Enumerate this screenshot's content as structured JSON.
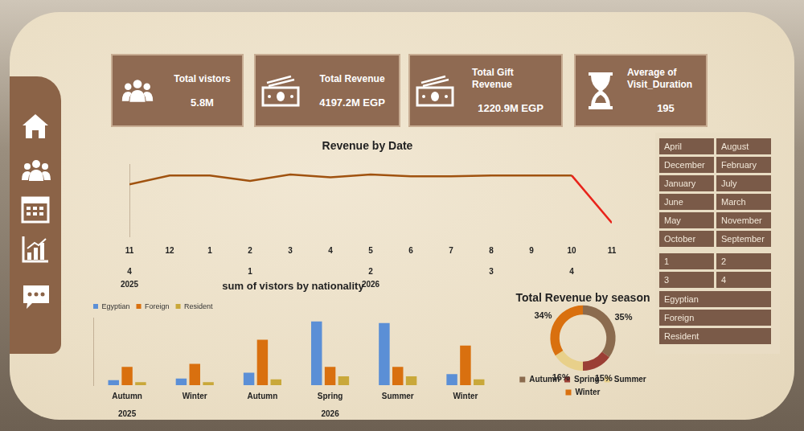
{
  "cards": [
    {
      "title": "Total vistors",
      "value": "5.8M"
    },
    {
      "title": "Total Revenue",
      "value": "4197.2M EGP"
    },
    {
      "title": "Total Gift Revenue",
      "value": "1220.9M EGP"
    },
    {
      "title": "Average of Visit_Duration",
      "value": "195"
    }
  ],
  "slicers": {
    "months": [
      "April",
      "August",
      "December",
      "February",
      "January",
      "July",
      "June",
      "March",
      "May",
      "November",
      "October",
      "September"
    ],
    "quarters": [
      "1",
      "2",
      "3",
      "4"
    ],
    "nationalities": [
      "Egyptian",
      "Foreign",
      "Resident"
    ]
  },
  "chart_data": [
    {
      "type": "line",
      "title": "Revenue by Date",
      "categories": [
        "11",
        "12",
        "1",
        "2",
        "3",
        "4",
        "5",
        "6",
        "7",
        "8",
        "9",
        "10",
        "11"
      ],
      "quarters": [
        "4",
        null,
        null,
        "1",
        null,
        null,
        "2",
        null,
        null,
        "3",
        null,
        "4",
        null
      ],
      "years": [
        "2025",
        null,
        null,
        null,
        null,
        null,
        "2026",
        null,
        null,
        null,
        null,
        null,
        null
      ],
      "values": [
        290,
        340,
        340,
        310,
        345,
        330,
        345,
        335,
        335,
        340,
        340,
        340,
        75
      ],
      "colors": [
        "#a0520f",
        "#a0520f",
        "#a0520f",
        "#a0520f",
        "#a0520f",
        "#a0520f",
        "#a0520f",
        "#a0520f",
        "#a0520f",
        "#a0520f",
        "#a0520f",
        "#a0520f",
        "#e8231a"
      ],
      "ylim": [
        0,
        400
      ],
      "yticks": [],
      "tick_labels": "x",
      "grid": false
    },
    {
      "type": "bar",
      "title": "sum of vistors by nationality",
      "categories": [
        "Autumn",
        "Winter",
        "Autumn",
        "Spring",
        "Summer",
        "Winter"
      ],
      "years": [
        "2025",
        null,
        null,
        "2026",
        null,
        null
      ],
      "series": [
        {
          "name": "Egyptian",
          "color": "#5b8fd6",
          "values": [
            84000,
            108000,
            204000,
            1044000,
            1020000,
            180000
          ]
        },
        {
          "name": "Foreign",
          "color": "#d9700f",
          "values": [
            300000,
            348000,
            744000,
            300000,
            300000,
            648000
          ]
        },
        {
          "name": "Resident",
          "color": "#c9a83a",
          "values": [
            48000,
            48000,
            96000,
            144000,
            144000,
            96000
          ]
        }
      ],
      "ylim": [
        0,
        1100000
      ],
      "yticks": [],
      "tick_labels": "x",
      "legend": "top-left",
      "grid": false
    },
    {
      "type": "doughnut",
      "title": "Total Revenue by season",
      "categories": [
        "Autumn",
        "Spring",
        "Summer",
        "Winter"
      ],
      "values": [
        35,
        15,
        16,
        34
      ],
      "value_labels": [
        "35%",
        "15%",
        "16%",
        "34%"
      ],
      "colors": [
        "#8b6b4e",
        "#9b3f35",
        "#e8d08a",
        "#d9700f"
      ],
      "legend": "bottom",
      "data_labels": true
    }
  ]
}
